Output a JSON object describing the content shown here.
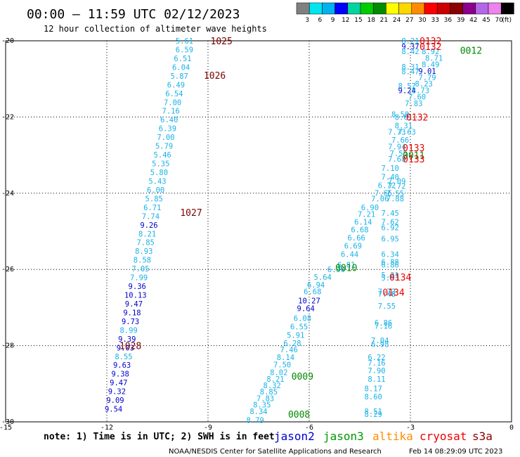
{
  "header": {
    "title": "00:00 – 11:59 UTC 02/12/2023",
    "subtitle": "12 hour collection of altimeter wave heights"
  },
  "colorbar": {
    "labels": [
      "3",
      "6",
      "9",
      "12",
      "15",
      "18",
      "21",
      "24",
      "27",
      "30",
      "33",
      "36",
      "39",
      "42",
      "45",
      "70",
      "(ft)"
    ],
    "colors": [
      "#808080",
      "#00e5ee",
      "#00b2ee",
      "#0000ff",
      "#00d5a0",
      "#00cc00",
      "#008b00",
      "#ffff00",
      "#ffd700",
      "#ff8c00",
      "#ff0000",
      "#cd0000",
      "#8b0000",
      "#8b008b",
      "#b266e8",
      "#ee82ee",
      "#000000"
    ]
  },
  "footer": {
    "note": "note: 1) Time is in UTC; 2) SWH is in feet",
    "credit": "NOAA/NESDIS Center for Satellite Applications and Research",
    "timestamp": "Feb 14 08:29:09 UTC 2023"
  },
  "missions": [
    {
      "name": "jason2",
      "color": "#0000cd"
    },
    {
      "name": "jason3",
      "color": "#009900"
    },
    {
      "name": "altika",
      "color": "#ff8c00"
    },
    {
      "name": "cryosat",
      "color": "#ee0000"
    },
    {
      "name": "s3a",
      "color": "#8b0000"
    }
  ],
  "chart_data": {
    "type": "scatter",
    "title": "00:00 – 11:59 UTC 02/12/2023",
    "xlim": [
      -15,
      0
    ],
    "ylim": [
      -30,
      -20
    ],
    "x_ticks": [
      "-15",
      "-12",
      "-9",
      "-6",
      "-3",
      "0"
    ],
    "y_ticks": [
      "-20",
      "-22",
      "-24",
      "-26",
      "-28",
      "-30"
    ],
    "grid": true,
    "colors": {
      "light": "#1ab2e8",
      "blue": "#0000cd",
      "green": "#008800",
      "red": "#ee0000",
      "maroon": "#7a0000"
    },
    "passes": [
      {
        "label": "1025",
        "x": -8.6,
        "y": -20.0,
        "color": "maroon"
      },
      {
        "label": "1026",
        "x": -8.8,
        "y": -20.9,
        "color": "maroon"
      },
      {
        "label": "1027",
        "x": -9.5,
        "y": -24.5,
        "color": "maroon"
      },
      {
        "label": "1028",
        "x": -11.3,
        "y": -28.0,
        "color": "maroon"
      },
      {
        "label": "0132",
        "x": -2.4,
        "y": -20.0,
        "color": "red"
      },
      {
        "label": "0132",
        "x": -2.4,
        "y": -20.15,
        "color": "red"
      },
      {
        "label": "0012",
        "x": -1.2,
        "y": -20.25,
        "color": "green"
      },
      {
        "label": "0132",
        "x": -2.8,
        "y": -22.0,
        "color": "red"
      },
      {
        "label": "0133",
        "x": -2.9,
        "y": -22.8,
        "color": "red"
      },
      {
        "label": "0011",
        "x": -2.9,
        "y": -23.0,
        "color": "green"
      },
      {
        "label": "0133",
        "x": -2.9,
        "y": -23.1,
        "color": "red"
      },
      {
        "label": "0010",
        "x": -4.9,
        "y": -25.95,
        "color": "green"
      },
      {
        "label": "0134",
        "x": -3.3,
        "y": -26.2,
        "color": "red"
      },
      {
        "label": "0134",
        "x": -3.5,
        "y": -26.6,
        "color": "red"
      },
      {
        "label": "0009",
        "x": -6.2,
        "y": -28.8,
        "color": "green"
      },
      {
        "label": "0008",
        "x": -6.3,
        "y": -29.8,
        "color": "green"
      }
    ],
    "points": [
      {
        "x": -9.7,
        "y": -20.0,
        "v": "5.61",
        "c": "light"
      },
      {
        "x": -9.7,
        "y": -20.23,
        "v": "6.59",
        "c": "light"
      },
      {
        "x": -9.75,
        "y": -20.46,
        "v": "6.51",
        "c": "light"
      },
      {
        "x": -9.8,
        "y": -20.69,
        "v": "6.04",
        "c": "light"
      },
      {
        "x": -9.85,
        "y": -20.92,
        "v": "5.87",
        "c": "light"
      },
      {
        "x": -9.95,
        "y": -21.15,
        "v": "6.49",
        "c": "light"
      },
      {
        "x": -10.0,
        "y": -21.38,
        "v": "6.54",
        "c": "light"
      },
      {
        "x": -10.05,
        "y": -21.61,
        "v": "7.00",
        "c": "light"
      },
      {
        "x": -10.1,
        "y": -21.84,
        "v": "7.16",
        "c": "light"
      },
      {
        "x": -10.15,
        "y": -22.07,
        "v": "6.40",
        "c": "light"
      },
      {
        "x": -10.2,
        "y": -22.3,
        "v": "6.39",
        "c": "light"
      },
      {
        "x": -10.25,
        "y": -22.53,
        "v": "7.00",
        "c": "light"
      },
      {
        "x": -10.3,
        "y": -22.76,
        "v": "5.79",
        "c": "light"
      },
      {
        "x": -10.35,
        "y": -22.99,
        "v": "5.46",
        "c": "light"
      },
      {
        "x": -10.4,
        "y": -23.22,
        "v": "5.35",
        "c": "light"
      },
      {
        "x": -10.45,
        "y": -23.45,
        "v": "5.80",
        "c": "light"
      },
      {
        "x": -10.5,
        "y": -23.68,
        "v": "5.43",
        "c": "light"
      },
      {
        "x": -10.55,
        "y": -23.91,
        "v": "6.00",
        "c": "light"
      },
      {
        "x": -10.6,
        "y": -24.14,
        "v": "5.85",
        "c": "light"
      },
      {
        "x": -10.65,
        "y": -24.37,
        "v": "6.71",
        "c": "light"
      },
      {
        "x": -10.7,
        "y": -24.6,
        "v": "7.74",
        "c": "light"
      },
      {
        "x": -10.75,
        "y": -24.83,
        "v": "9.26",
        "c": "blue"
      },
      {
        "x": -10.8,
        "y": -25.06,
        "v": "8.21",
        "c": "light"
      },
      {
        "x": -10.85,
        "y": -25.29,
        "v": "7.85",
        "c": "light"
      },
      {
        "x": -10.9,
        "y": -25.52,
        "v": "8.93",
        "c": "light"
      },
      {
        "x": -10.95,
        "y": -25.75,
        "v": "8.58",
        "c": "light"
      },
      {
        "x": -11.0,
        "y": -25.98,
        "v": "7.05",
        "c": "light"
      },
      {
        "x": -11.05,
        "y": -26.21,
        "v": "7.99",
        "c": "light"
      },
      {
        "x": -11.1,
        "y": -26.44,
        "v": "9.36",
        "c": "blue"
      },
      {
        "x": -11.15,
        "y": -26.67,
        "v": "10.13",
        "c": "blue"
      },
      {
        "x": -11.2,
        "y": -26.9,
        "v": "9.47",
        "c": "blue"
      },
      {
        "x": -11.25,
        "y": -27.13,
        "v": "9.18",
        "c": "blue"
      },
      {
        "x": -11.3,
        "y": -27.36,
        "v": "9.73",
        "c": "blue"
      },
      {
        "x": -11.35,
        "y": -27.59,
        "v": "8.99",
        "c": "light"
      },
      {
        "x": -11.4,
        "y": -27.82,
        "v": "9.39",
        "c": "blue"
      },
      {
        "x": -11.45,
        "y": -28.05,
        "v": "9.03",
        "c": "blue"
      },
      {
        "x": -11.5,
        "y": -28.28,
        "v": "8.55",
        "c": "light"
      },
      {
        "x": -11.55,
        "y": -28.51,
        "v": "9.63",
        "c": "blue"
      },
      {
        "x": -11.6,
        "y": -28.74,
        "v": "9.38",
        "c": "blue"
      },
      {
        "x": -11.65,
        "y": -28.97,
        "v": "9.47",
        "c": "blue"
      },
      {
        "x": -11.7,
        "y": -29.2,
        "v": "9.32",
        "c": "blue"
      },
      {
        "x": -11.75,
        "y": -29.43,
        "v": "9.09",
        "c": "blue"
      },
      {
        "x": -11.8,
        "y": -29.66,
        "v": "9.54",
        "c": "blue"
      },
      {
        "x": -3.0,
        "y": -20.0,
        "v": "8.21",
        "c": "light"
      },
      {
        "x": -3.0,
        "y": -20.15,
        "v": "9.37",
        "c": "blue"
      },
      {
        "x": -3.0,
        "y": -20.28,
        "v": "8.42",
        "c": "light"
      },
      {
        "x": -2.4,
        "y": -20.28,
        "v": "8.92",
        "c": "light"
      },
      {
        "x": -2.3,
        "y": -20.45,
        "v": "8.71",
        "c": "light"
      },
      {
        "x": -2.4,
        "y": -20.62,
        "v": "8.49",
        "c": "light"
      },
      {
        "x": -3.0,
        "y": -20.68,
        "v": "8.31",
        "c": "light"
      },
      {
        "x": -3.0,
        "y": -20.8,
        "v": "8.47",
        "c": "light"
      },
      {
        "x": -2.5,
        "y": -20.79,
        "v": "9.01",
        "c": "blue"
      },
      {
        "x": -2.5,
        "y": -20.96,
        "v": "7.79",
        "c": "light"
      },
      {
        "x": -2.6,
        "y": -21.13,
        "v": "8.23",
        "c": "light"
      },
      {
        "x": -3.1,
        "y": -21.18,
        "v": "8.57",
        "c": "light"
      },
      {
        "x": -3.1,
        "y": -21.3,
        "v": "9.24",
        "c": "blue"
      },
      {
        "x": -2.7,
        "y": -21.3,
        "v": "8.73",
        "c": "light"
      },
      {
        "x": -2.8,
        "y": -21.47,
        "v": "7.60",
        "c": "light"
      },
      {
        "x": -2.9,
        "y": -21.64,
        "v": "7.83",
        "c": "light"
      },
      {
        "x": -3.3,
        "y": -21.93,
        "v": "8.58",
        "c": "light"
      },
      {
        "x": -3.2,
        "y": -22.0,
        "v": "8.01",
        "c": "light"
      },
      {
        "x": -3.2,
        "y": -22.22,
        "v": "8.31",
        "c": "light"
      },
      {
        "x": -3.4,
        "y": -22.39,
        "v": "7.73",
        "c": "light"
      },
      {
        "x": -3.1,
        "y": -22.39,
        "v": "7.63",
        "c": "light"
      },
      {
        "x": -3.3,
        "y": -22.6,
        "v": "7.66",
        "c": "light"
      },
      {
        "x": -3.4,
        "y": -22.78,
        "v": "7.94",
        "c": "light"
      },
      {
        "x": -3.35,
        "y": -22.95,
        "v": "7.55",
        "c": "light"
      },
      {
        "x": -3.4,
        "y": -23.1,
        "v": "7.68",
        "c": "light"
      },
      {
        "x": -3.6,
        "y": -23.34,
        "v": "7.10",
        "c": "light"
      },
      {
        "x": -3.6,
        "y": -23.57,
        "v": "7.40",
        "c": "light"
      },
      {
        "x": -3.4,
        "y": -23.68,
        "v": "7.09",
        "c": "light"
      },
      {
        "x": -3.7,
        "y": -23.79,
        "v": "6.72",
        "c": "light"
      },
      {
        "x": -3.4,
        "y": -23.81,
        "v": "7.72",
        "c": "light"
      },
      {
        "x": -3.8,
        "y": -23.99,
        "v": "7.65",
        "c": "light"
      },
      {
        "x": -3.45,
        "y": -24.0,
        "v": "7.55",
        "c": "light"
      },
      {
        "x": -3.9,
        "y": -24.14,
        "v": "7.06",
        "c": "light"
      },
      {
        "x": -3.45,
        "y": -24.14,
        "v": "7.88",
        "c": "light"
      },
      {
        "x": -4.2,
        "y": -24.37,
        "v": "6.90",
        "c": "light"
      },
      {
        "x": -4.3,
        "y": -24.55,
        "v": "7.21",
        "c": "light"
      },
      {
        "x": -3.6,
        "y": -24.52,
        "v": "7.45",
        "c": "light"
      },
      {
        "x": -4.4,
        "y": -24.75,
        "v": "6.14",
        "c": "light"
      },
      {
        "x": -3.6,
        "y": -24.75,
        "v": "7.62",
        "c": "light"
      },
      {
        "x": -4.5,
        "y": -24.95,
        "v": "6.68",
        "c": "light"
      },
      {
        "x": -3.6,
        "y": -24.9,
        "v": "6.92",
        "c": "light"
      },
      {
        "x": -4.6,
        "y": -25.17,
        "v": "6.66",
        "c": "light"
      },
      {
        "x": -3.6,
        "y": -25.19,
        "v": "6.95",
        "c": "light"
      },
      {
        "x": -4.7,
        "y": -25.38,
        "v": "6.69",
        "c": "light"
      },
      {
        "x": -4.8,
        "y": -25.6,
        "v": "6.44",
        "c": "light"
      },
      {
        "x": -3.6,
        "y": -25.6,
        "v": "6.34",
        "c": "light"
      },
      {
        "x": -3.6,
        "y": -25.8,
        "v": "6.88",
        "c": "light"
      },
      {
        "x": -3.6,
        "y": -25.88,
        "v": "6.86",
        "c": "light"
      },
      {
        "x": -4.9,
        "y": -25.88,
        "v": "6.81",
        "c": "light"
      },
      {
        "x": -5.2,
        "y": -26.0,
        "v": "6.30",
        "c": "light"
      },
      {
        "x": -3.6,
        "y": -26.14,
        "v": "5.31",
        "c": "light"
      },
      {
        "x": -3.6,
        "y": -26.22,
        "v": "5.93",
        "c": "light"
      },
      {
        "x": -5.6,
        "y": -26.2,
        "v": "5.64",
        "c": "light"
      },
      {
        "x": -5.8,
        "y": -26.4,
        "v": "6.94",
        "c": "light"
      },
      {
        "x": -5.9,
        "y": -26.58,
        "v": "6.68",
        "c": "light"
      },
      {
        "x": -3.7,
        "y": -26.58,
        "v": "7.72",
        "c": "light"
      },
      {
        "x": -3.7,
        "y": -26.64,
        "v": "7.48",
        "c": "light"
      },
      {
        "x": -6.0,
        "y": -26.82,
        "v": "10.27",
        "c": "blue"
      },
      {
        "x": -3.7,
        "y": -26.96,
        "v": "7.55",
        "c": "light"
      },
      {
        "x": -6.1,
        "y": -27.02,
        "v": "9.64",
        "c": "blue"
      },
      {
        "x": -6.2,
        "y": -27.28,
        "v": "6.08",
        "c": "light"
      },
      {
        "x": -3.8,
        "y": -27.4,
        "v": "6.86",
        "c": "light"
      },
      {
        "x": -3.8,
        "y": -27.48,
        "v": "7.16",
        "c": "light"
      },
      {
        "x": -6.3,
        "y": -27.5,
        "v": "6.55",
        "c": "light"
      },
      {
        "x": -6.4,
        "y": -27.72,
        "v": "5.91",
        "c": "light"
      },
      {
        "x": -3.9,
        "y": -27.86,
        "v": "7.04",
        "c": "light"
      },
      {
        "x": -3.9,
        "y": -27.96,
        "v": "6.98",
        "c": "light"
      },
      {
        "x": -6.5,
        "y": -27.93,
        "v": "6.28",
        "c": "light"
      },
      {
        "x": -6.6,
        "y": -28.1,
        "v": "7.46",
        "c": "light"
      },
      {
        "x": -6.7,
        "y": -28.3,
        "v": "8.14",
        "c": "light"
      },
      {
        "x": -4.0,
        "y": -28.3,
        "v": "6.22",
        "c": "light"
      },
      {
        "x": -4.0,
        "y": -28.45,
        "v": "7.16",
        "c": "light"
      },
      {
        "x": -6.8,
        "y": -28.5,
        "v": "7.50",
        "c": "light"
      },
      {
        "x": -4.0,
        "y": -28.65,
        "v": "7.90",
        "c": "light"
      },
      {
        "x": -6.9,
        "y": -28.7,
        "v": "8.02",
        "c": "light"
      },
      {
        "x": -7.0,
        "y": -28.87,
        "v": "8.21",
        "c": "light"
      },
      {
        "x": -4.0,
        "y": -28.87,
        "v": "8.11",
        "c": "light"
      },
      {
        "x": -7.1,
        "y": -29.04,
        "v": "8.32",
        "c": "light"
      },
      {
        "x": -4.1,
        "y": -29.12,
        "v": "8.17",
        "c": "light"
      },
      {
        "x": -7.2,
        "y": -29.21,
        "v": "8.85",
        "c": "light"
      },
      {
        "x": -4.1,
        "y": -29.34,
        "v": "8.60",
        "c": "light"
      },
      {
        "x": -7.3,
        "y": -29.38,
        "v": "7.83",
        "c": "light"
      },
      {
        "x": -7.4,
        "y": -29.55,
        "v": "8.35",
        "c": "light"
      },
      {
        "x": -4.1,
        "y": -29.72,
        "v": "8.51",
        "c": "light"
      },
      {
        "x": -4.1,
        "y": -29.8,
        "v": "8.29",
        "c": "light"
      },
      {
        "x": -7.5,
        "y": -29.72,
        "v": "8.34",
        "c": "light"
      },
      {
        "x": -7.6,
        "y": -29.95,
        "v": "8.79",
        "c": "light"
      }
    ]
  }
}
